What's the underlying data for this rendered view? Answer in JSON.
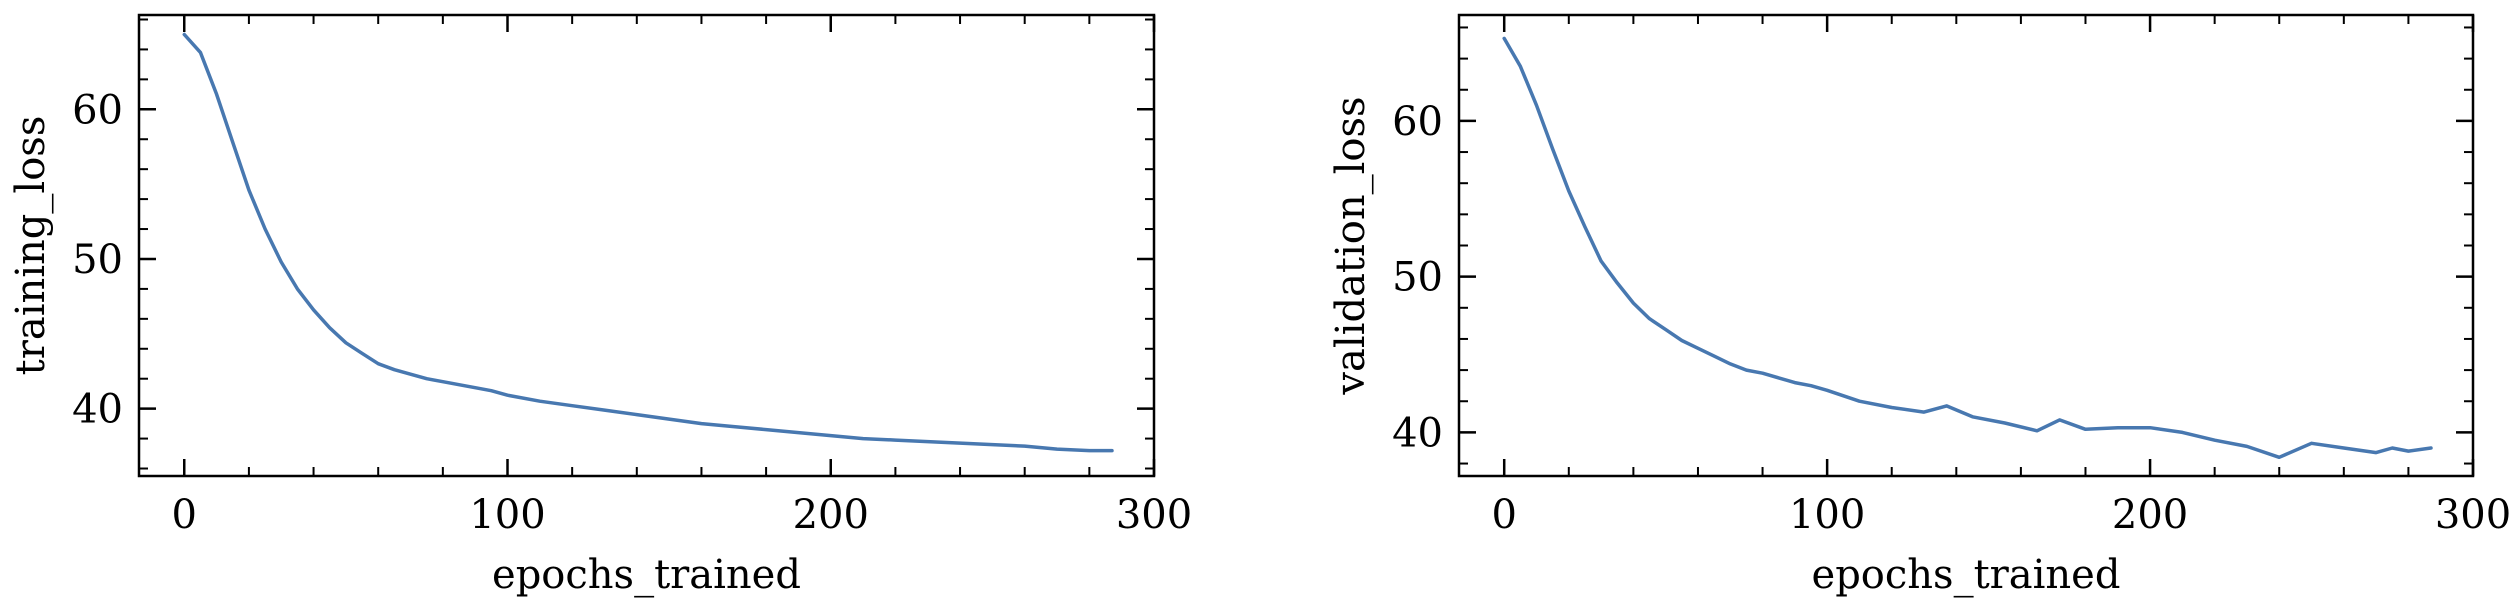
{
  "chart_data": [
    {
      "type": "line",
      "xlabel": "epochs_trained",
      "ylabel": "training_loss",
      "xlim": [
        -14,
        300
      ],
      "ylim": [
        35.5,
        66.3
      ],
      "xticks": [
        0,
        100,
        200,
        300
      ],
      "xtick_labels": [
        "0",
        "100",
        "200",
        "300"
      ],
      "yticks": [
        40,
        50,
        60
      ],
      "ytick_labels": [
        "40",
        "50",
        "60"
      ],
      "grid": false,
      "series": [
        {
          "color": "#4878b0",
          "x": [
            0,
            5,
            10,
            15,
            20,
            25,
            30,
            35,
            40,
            45,
            50,
            55,
            60,
            65,
            70,
            75,
            80,
            85,
            90,
            95,
            100,
            110,
            120,
            130,
            140,
            150,
            160,
            170,
            180,
            190,
            200,
            210,
            220,
            230,
            240,
            250,
            260,
            270,
            280,
            287
          ],
          "y": [
            65.0,
            63.8,
            61.0,
            57.8,
            54.6,
            52.0,
            49.8,
            48.0,
            46.6,
            45.4,
            44.4,
            43.7,
            43.0,
            42.6,
            42.3,
            42.0,
            41.8,
            41.6,
            41.4,
            41.2,
            40.9,
            40.5,
            40.2,
            39.9,
            39.6,
            39.3,
            39.0,
            38.8,
            38.6,
            38.4,
            38.2,
            38.0,
            37.9,
            37.8,
            37.7,
            37.6,
            37.5,
            37.3,
            37.2,
            37.2
          ]
        }
      ]
    },
    {
      "type": "line",
      "xlabel": "epochs_trained",
      "ylabel": "validation_loss",
      "xlim": [
        -14,
        300
      ],
      "ylim": [
        37.2,
        66.8
      ],
      "xticks": [
        0,
        100,
        200,
        300
      ],
      "xtick_labels": [
        "0",
        "100",
        "200",
        "300"
      ],
      "yticks": [
        40,
        50,
        60
      ],
      "ytick_labels": [
        "40",
        "50",
        "60"
      ],
      "grid": false,
      "series": [
        {
          "color": "#4878b0",
          "x": [
            0,
            5,
            10,
            15,
            20,
            25,
            30,
            35,
            40,
            45,
            50,
            55,
            60,
            65,
            70,
            75,
            80,
            85,
            90,
            95,
            100,
            110,
            120,
            130,
            137,
            145,
            155,
            165,
            172,
            180,
            190,
            200,
            210,
            220,
            230,
            240,
            250,
            260,
            270,
            275,
            280,
            287
          ],
          "y": [
            65.3,
            63.5,
            61.0,
            58.2,
            55.5,
            53.2,
            51.0,
            49.6,
            48.3,
            47.3,
            46.6,
            45.9,
            45.4,
            44.9,
            44.4,
            44.0,
            43.8,
            43.5,
            43.2,
            43.0,
            42.7,
            42.0,
            41.6,
            41.3,
            41.7,
            41.0,
            40.6,
            40.1,
            40.8,
            40.2,
            40.3,
            40.3,
            40.0,
            39.5,
            39.1,
            38.4,
            39.3,
            39.0,
            38.7,
            39.0,
            38.8,
            39.0
          ]
        }
      ]
    }
  ]
}
